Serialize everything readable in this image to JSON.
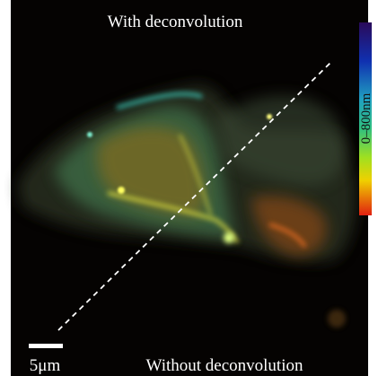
{
  "labels": {
    "top": "With deconvolution",
    "bottom": "Without deconvolution",
    "scale_bar": "5μm",
    "colorbar": "0–800nm"
  }
}
